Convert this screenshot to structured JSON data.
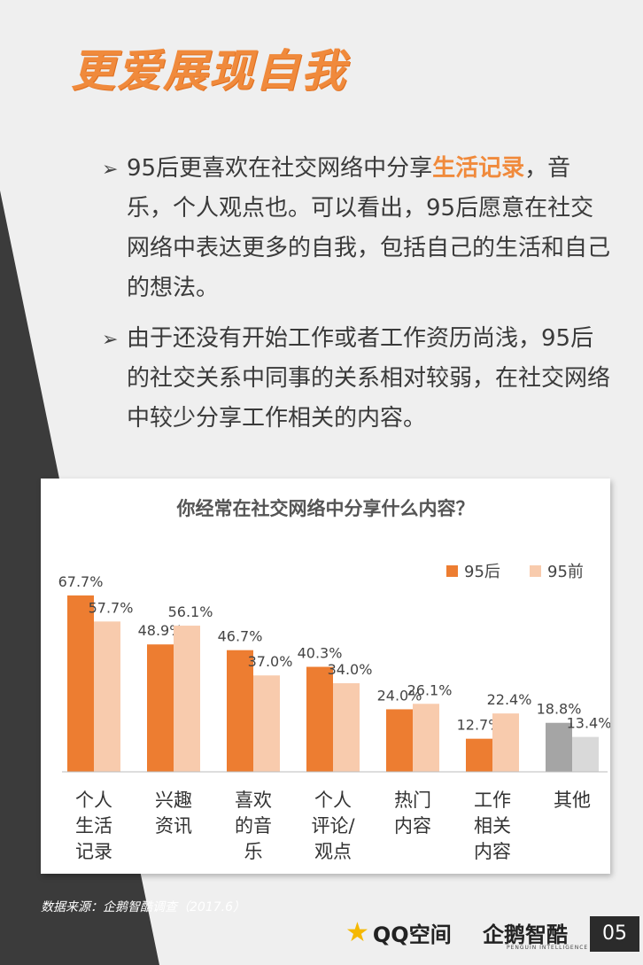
{
  "page": {
    "title": "更爱展现自我",
    "bullets": [
      {
        "pre": "95后更喜欢在社交网络中分享",
        "highlight": "生活记录",
        "post": "，音乐，个人观点也。可以看出，95后愿意在社交网络中表达更多的自我，包括自己的生活和自己的想法。"
      },
      {
        "pre": "由于还没有开始工作或者工作资历尚浅，95后的社交关系中同事的关系相对较弱，在社交网络中较少分享工作相关的内容。",
        "highlight": "",
        "post": ""
      }
    ],
    "source": "数据来源：企鹅智酷调查（2017.6）",
    "qq_logo": "QQ空间",
    "penguin_logo": "企鹅智酷",
    "penguin_sub": "PENGUIN INTELLIGENCE",
    "page_number": "05"
  },
  "colors": {
    "accent": "#f08a3c",
    "series_95hou": "#ed7d31",
    "series_95qian": "#f8cbad",
    "other_95hou": "#a5a5a5",
    "other_95qian": "#d9d9d9",
    "dark_triangle": "#3b3b3b"
  },
  "chart_data": {
    "type": "bar",
    "title": "你经常在社交网络中分享什么内容？",
    "categories": [
      "个人生活记录",
      "兴趣资讯",
      "喜欢的音乐",
      "个人评论/观点",
      "热门内容",
      "工作相关内容",
      "其他"
    ],
    "category_lines": [
      [
        "个人",
        "生活",
        "记录"
      ],
      [
        "兴趣",
        "资讯"
      ],
      [
        "喜欢",
        "的音",
        "乐"
      ],
      [
        "个人",
        "评论/",
        "观点"
      ],
      [
        "热门",
        "内容"
      ],
      [
        "工作",
        "相关",
        "内容"
      ],
      [
        "其他"
      ]
    ],
    "series": [
      {
        "name": "95后",
        "values": [
          67.7,
          48.9,
          46.7,
          40.3,
          24.0,
          12.7,
          18.8
        ],
        "labels": [
          "67.7%",
          "48.9%",
          "46.7%",
          "40.3%",
          "24.0%",
          "12.7%",
          "18.8%"
        ]
      },
      {
        "name": "95前",
        "values": [
          57.7,
          56.1,
          37.0,
          34.0,
          26.1,
          22.4,
          13.4
        ],
        "labels": [
          "57.7%",
          "56.1%",
          "37.0%",
          "34.0%",
          "26.1%",
          "22.4%",
          "13.4%"
        ]
      }
    ],
    "ylim": [
      0,
      80
    ],
    "legend": "top-right",
    "grid": false
  }
}
